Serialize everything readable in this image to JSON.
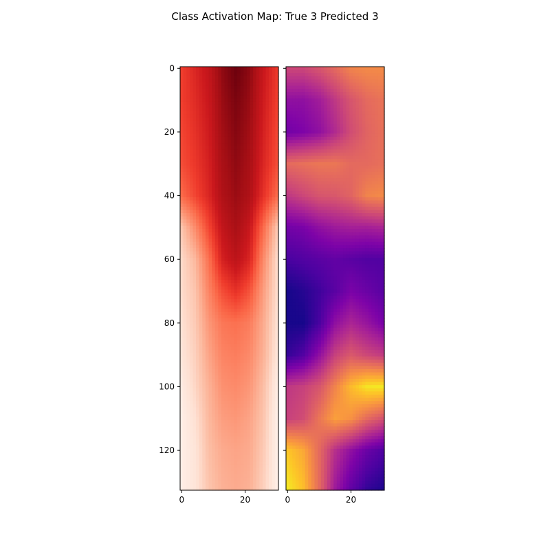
{
  "chart_data": {
    "type": "heatmap",
    "title": "Class Activation Map: True 3 Predicted 3",
    "panels": [
      {
        "name": "left-panel",
        "colormap": "reds",
        "xlim": [
          -0.5,
          30.5
        ],
        "ylim": [
          132.5,
          -0.5
        ],
        "xticks": [
          0,
          20
        ],
        "yticks": [
          0,
          20,
          40,
          60,
          80,
          100,
          120
        ],
        "ytick_labels": [
          "0",
          "20",
          "40",
          "60",
          "80",
          "100",
          "120"
        ],
        "xtick_labels": [
          "0",
          "20"
        ],
        "row_stops": [
          0,
          10,
          20,
          30,
          40,
          50,
          60,
          70,
          80,
          90,
          100,
          110,
          120,
          132
        ],
        "grid": [
          [
            0.62,
            0.7,
            0.78,
            0.92,
            0.99,
            0.92,
            0.76,
            0.64
          ],
          [
            0.62,
            0.68,
            0.76,
            0.9,
            0.96,
            0.9,
            0.74,
            0.62
          ],
          [
            0.6,
            0.66,
            0.74,
            0.88,
            0.94,
            0.88,
            0.72,
            0.6
          ],
          [
            0.58,
            0.64,
            0.72,
            0.86,
            0.92,
            0.86,
            0.7,
            0.58
          ],
          [
            0.5,
            0.6,
            0.7,
            0.84,
            0.9,
            0.84,
            0.66,
            0.5
          ],
          [
            0.22,
            0.4,
            0.6,
            0.78,
            0.86,
            0.76,
            0.5,
            0.22
          ],
          [
            0.15,
            0.26,
            0.48,
            0.72,
            0.8,
            0.7,
            0.4,
            0.15
          ],
          [
            0.14,
            0.22,
            0.42,
            0.58,
            0.66,
            0.56,
            0.34,
            0.14
          ],
          [
            0.12,
            0.2,
            0.36,
            0.46,
            0.48,
            0.44,
            0.3,
            0.12
          ],
          [
            0.1,
            0.18,
            0.32,
            0.42,
            0.44,
            0.4,
            0.28,
            0.1
          ],
          [
            0.06,
            0.16,
            0.28,
            0.38,
            0.4,
            0.36,
            0.24,
            0.06
          ],
          [
            0.04,
            0.12,
            0.26,
            0.34,
            0.36,
            0.32,
            0.22,
            0.04
          ],
          [
            0.04,
            0.1,
            0.24,
            0.3,
            0.32,
            0.3,
            0.2,
            0.04
          ],
          [
            0.04,
            0.1,
            0.22,
            0.28,
            0.3,
            0.28,
            0.18,
            0.04
          ]
        ]
      },
      {
        "name": "right-panel",
        "colormap": "plasma",
        "xlim": [
          -0.5,
          30.5
        ],
        "ylim": [
          132.5,
          -0.5
        ],
        "xticks": [
          0,
          20
        ],
        "yticks": [
          0,
          20,
          40,
          60,
          80,
          100,
          120
        ],
        "xtick_labels": [
          "0",
          "20"
        ],
        "row_stops": [
          0,
          10,
          20,
          30,
          40,
          50,
          60,
          70,
          80,
          90,
          100,
          110,
          120,
          132
        ],
        "grid": [
          [
            0.5,
            0.5,
            0.55,
            0.62,
            0.7,
            0.72,
            0.72
          ],
          [
            0.3,
            0.3,
            0.35,
            0.45,
            0.55,
            0.62,
            0.65
          ],
          [
            0.22,
            0.25,
            0.3,
            0.4,
            0.52,
            0.6,
            0.64
          ],
          [
            0.62,
            0.64,
            0.66,
            0.66,
            0.62,
            0.62,
            0.64
          ],
          [
            0.45,
            0.5,
            0.55,
            0.56,
            0.6,
            0.7,
            0.72
          ],
          [
            0.22,
            0.24,
            0.3,
            0.34,
            0.36,
            0.36,
            0.38
          ],
          [
            0.12,
            0.14,
            0.16,
            0.18,
            0.16,
            0.14,
            0.14
          ],
          [
            0.02,
            0.05,
            0.1,
            0.16,
            0.24,
            0.2,
            0.16
          ],
          [
            0.02,
            0.02,
            0.12,
            0.3,
            0.38,
            0.32,
            0.24
          ],
          [
            0.08,
            0.14,
            0.3,
            0.48,
            0.56,
            0.5,
            0.46
          ],
          [
            0.45,
            0.48,
            0.55,
            0.7,
            0.85,
            0.95,
            0.96
          ],
          [
            0.48,
            0.52,
            0.66,
            0.78,
            0.74,
            0.62,
            0.54
          ],
          [
            0.88,
            0.8,
            0.62,
            0.42,
            0.3,
            0.2,
            0.14
          ],
          [
            0.96,
            0.86,
            0.62,
            0.34,
            0.18,
            0.08,
            0.04
          ]
        ]
      }
    ]
  }
}
